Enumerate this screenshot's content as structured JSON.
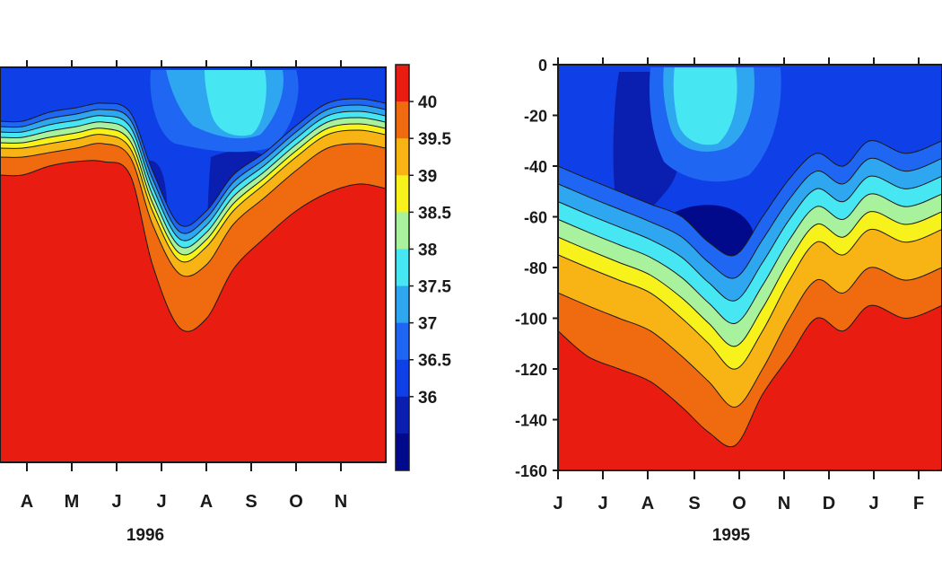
{
  "colors": {
    "levels": [
      "#000a8a",
      "#0a1fb0",
      "#0f3fe6",
      "#1f66f2",
      "#2ea7f0",
      "#46e6f2",
      "#a8f29e",
      "#f7f21c",
      "#f7b414",
      "#f06a10",
      "#e81c10"
    ],
    "contour_line": "#1a1a1a"
  },
  "chart_data": [
    {
      "type": "heatmap",
      "subtype": "filled-contour",
      "title": "",
      "xlabel": "1996",
      "ylabel": "",
      "x_ticks": [
        "A",
        "M",
        "J",
        "J",
        "A",
        "S",
        "O",
        "N"
      ],
      "y_ticks": [],
      "colorbar": {
        "levels": [
          36,
          36.5,
          37,
          37.5,
          38,
          38.5,
          39,
          39.5,
          40
        ],
        "labels": [
          "40",
          "39.5",
          "39",
          "38.5",
          "38",
          "37.5",
          "37",
          "36.5",
          "36"
        ]
      },
      "contour_depths": [
        {
          "level": 36.5,
          "depth": [
            60,
            60,
            50,
            45,
            40,
            50,
            115,
            175,
            160,
            120,
            95,
            65,
            40,
            35,
            40
          ]
        },
        {
          "level": 37,
          "depth": [
            66,
            66,
            57,
            52,
            47,
            58,
            124,
            183,
            168,
            128,
            102,
            72,
            47,
            42,
            47
          ]
        },
        {
          "level": 37.5,
          "depth": [
            72,
            72,
            64,
            59,
            54,
            66,
            133,
            191,
            176,
            136,
            109,
            79,
            54,
            49,
            54
          ]
        },
        {
          "level": 38,
          "depth": [
            78,
            78,
            71,
            66,
            61,
            74,
            142,
            199,
            184,
            144,
            116,
            86,
            61,
            56,
            61
          ]
        },
        {
          "level": 38.5,
          "depth": [
            84,
            84,
            78,
            73,
            68,
            82,
            151,
            207,
            192,
            152,
            123,
            93,
            68,
            63,
            68
          ]
        },
        {
          "level": 39,
          "depth": [
            90,
            90,
            85,
            80,
            75,
            90,
            160,
            215,
            200,
            160,
            130,
            100,
            75,
            70,
            75
          ]
        },
        {
          "level": 39.5,
          "depth": [
            100,
            100,
            95,
            90,
            85,
            100,
            175,
            230,
            220,
            175,
            145,
            115,
            90,
            85,
            90
          ]
        },
        {
          "level": 40,
          "depth": [
            120,
            120,
            110,
            105,
            105,
            120,
            220,
            290,
            280,
            225,
            190,
            160,
            140,
            130,
            135
          ]
        }
      ]
    },
    {
      "type": "heatmap",
      "subtype": "filled-contour",
      "title": "",
      "xlabel": "1995",
      "ylabel": "",
      "x_ticks": [
        "J",
        "J",
        "A",
        "S",
        "O",
        "N",
        "D",
        "J",
        "F"
      ],
      "y_ticks": [
        "0",
        "-20",
        "-40",
        "-60",
        "-80",
        "-100",
        "-120",
        "-140",
        "-160"
      ],
      "ylim": [
        -160,
        0
      ],
      "contour_depths": [
        {
          "level": 36.5,
          "depth": [
            -40,
            -45,
            -50,
            -55,
            -60,
            -70,
            -75,
            -60,
            -45,
            -35,
            -40,
            -30,
            -35,
            -30
          ]
        },
        {
          "level": 37,
          "depth": [
            -47,
            -52,
            -57,
            -62,
            -68,
            -78,
            -84,
            -69,
            -53,
            -42,
            -47,
            -37,
            -42,
            -37
          ]
        },
        {
          "level": 37.5,
          "depth": [
            -54,
            -59,
            -64,
            -69,
            -76,
            -86,
            -93,
            -78,
            -61,
            -49,
            -54,
            -44,
            -49,
            -44
          ]
        },
        {
          "level": 38,
          "depth": [
            -61,
            -66,
            -71,
            -76,
            -84,
            -94,
            -102,
            -87,
            -69,
            -56,
            -61,
            -51,
            -56,
            -51
          ]
        },
        {
          "level": 38.5,
          "depth": [
            -68,
            -73,
            -78,
            -83,
            -92,
            -102,
            -111,
            -96,
            -77,
            -63,
            -68,
            -58,
            -63,
            -58
          ]
        },
        {
          "level": 39,
          "depth": [
            -75,
            -80,
            -85,
            -90,
            -100,
            -110,
            -120,
            -105,
            -85,
            -70,
            -75,
            -65,
            -70,
            -65
          ]
        },
        {
          "level": 39.5,
          "depth": [
            -90,
            -95,
            -100,
            -105,
            -115,
            -125,
            -135,
            -120,
            -100,
            -85,
            -90,
            -80,
            -85,
            -80
          ]
        },
        {
          "level": 40,
          "depth": [
            -105,
            -115,
            -120,
            -125,
            -135,
            -145,
            -150,
            -130,
            -115,
            -100,
            -105,
            -95,
            -100,
            -95
          ]
        }
      ]
    }
  ]
}
